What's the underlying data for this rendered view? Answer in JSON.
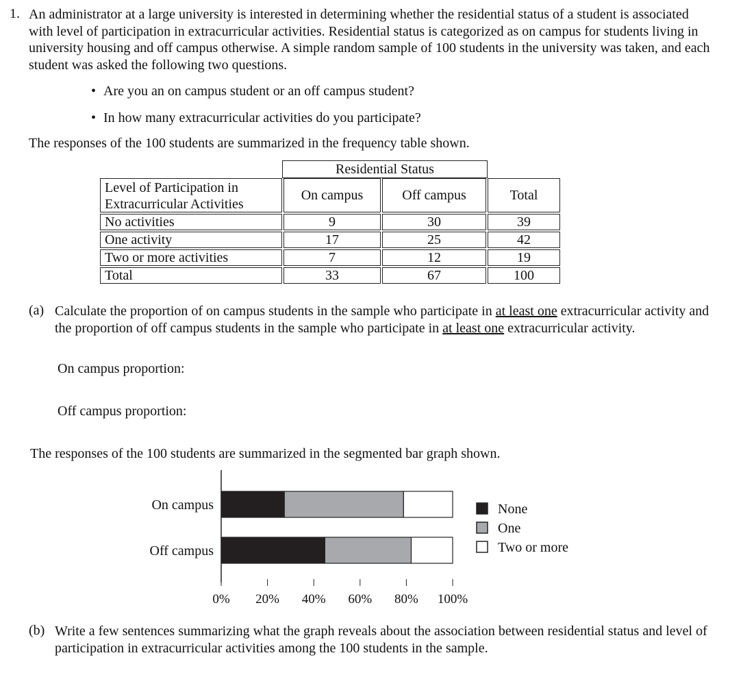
{
  "question": {
    "number": "1.",
    "intro": "An administrator at a large university is interested in determining whether the residential status of a student is associated with level of participation in extracurricular activities. Residential status is categorized as on campus for students living in university housing and off campus otherwise. A simple random sample of 100 students in the university was taken, and each student was asked the following two questions.",
    "bullets": [
      "Are you an on campus student or an off campus student?",
      "In how many extracurricular activities do you participate?"
    ],
    "table_intro": "The responses of the 100 students are summarized in the frequency table shown."
  },
  "table": {
    "group_header": "Residential Status",
    "row_header_line1": "Level of Participation in",
    "row_header_line2": "Extracurricular Activities",
    "col_on": "On campus",
    "col_off": "Off campus",
    "col_total": "Total",
    "rows": [
      {
        "label": "No activities",
        "on": "9",
        "off": "30",
        "total": "39"
      },
      {
        "label": "One activity",
        "on": "17",
        "off": "25",
        "total": "42"
      },
      {
        "label": "Two or more activities",
        "on": "7",
        "off": "12",
        "total": "19"
      },
      {
        "label": "Total",
        "on": "33",
        "off": "67",
        "total": "100"
      }
    ]
  },
  "part_a": {
    "label": "(a)",
    "text_before": "Calculate the proportion of on campus students in the sample who participate in ",
    "underlined1": "at least one",
    "text_middle": " extracurricular activity and the proportion of off campus students in the sample who participate in ",
    "underlined2": "at least one",
    "text_after": " extracurricular activity.",
    "on_campus_prompt": "On campus proportion:",
    "off_campus_prompt": "Off campus proportion:"
  },
  "graph_intro": "The responses of the 100 students are summarized in the segmented bar graph shown.",
  "chart_data": {
    "type": "bar",
    "orientation": "horizontal",
    "stacked": true,
    "categories": [
      "On campus",
      "Off campus"
    ],
    "series": [
      {
        "name": "None",
        "color": "#231f20",
        "values": [
          27.3,
          44.8
        ]
      },
      {
        "name": "One",
        "color": "#a7a9ac",
        "values": [
          51.5,
          37.3
        ]
      },
      {
        "name": "Two or more",
        "color": "#ffffff",
        "values": [
          21.2,
          17.9
        ]
      }
    ],
    "x_ticks": [
      "0%",
      "20%",
      "40%",
      "60%",
      "80%",
      "100%"
    ],
    "xlim": [
      0,
      100
    ],
    "legend_position": "right"
  },
  "part_b": {
    "label": "(b)",
    "text": "Write a few sentences summarizing what the graph reveals about the association between residential status and level of participation in extracurricular activities among the 100 students in the sample."
  }
}
